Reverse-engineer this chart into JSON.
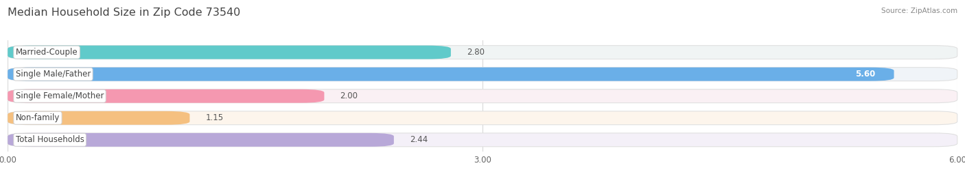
{
  "title": "Median Household Size in Zip Code 73540",
  "source": "Source: ZipAtlas.com",
  "categories": [
    "Married-Couple",
    "Single Male/Father",
    "Single Female/Mother",
    "Non-family",
    "Total Households"
  ],
  "values": [
    2.8,
    5.6,
    2.0,
    1.15,
    2.44
  ],
  "bar_colors": [
    "#60caca",
    "#6aafe8",
    "#f598b0",
    "#f5c080",
    "#b8a8d8"
  ],
  "bg_colors": [
    "#f0f4f4",
    "#f0f4f8",
    "#faf0f4",
    "#fdf5ec",
    "#f4f0f8"
  ],
  "xlim": [
    0,
    6.0
  ],
  "xticks": [
    0.0,
    3.0,
    6.0
  ],
  "xtick_labels": [
    "0.00",
    "3.00",
    "6.00"
  ],
  "title_fontsize": 11.5,
  "label_fontsize": 8.5,
  "value_fontsize": 8.5,
  "bar_height": 0.62,
  "figure_bg": "#ffffff",
  "axes_bg": "#ffffff",
  "grid_color": "#d8d8d8",
  "label_color": "#444444",
  "value_color_outside": "#555555",
  "value_color_inside": "#ffffff"
}
